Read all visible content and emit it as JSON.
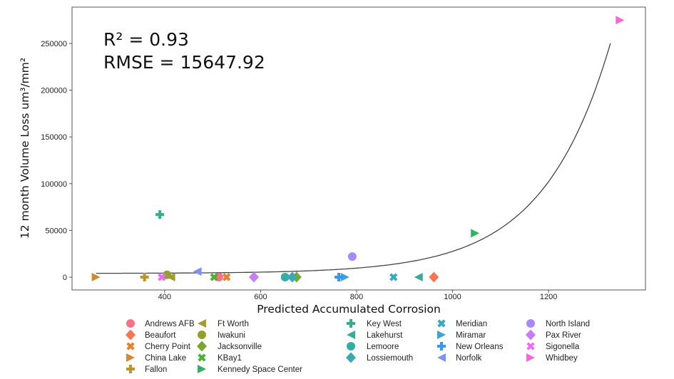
{
  "chart_data": {
    "type": "scatter",
    "title": "",
    "xlabel": "Predicted Accumulated Corrosion",
    "ylabel": "12 month Volume Loss um³/mm²",
    "xlim": [
      207,
      1402
    ],
    "ylim": [
      -13700,
      288900
    ],
    "xticks": [
      400,
      600,
      800,
      1000,
      1200
    ],
    "yticks": [
      0,
      50000,
      100000,
      150000,
      200000,
      250000
    ],
    "grid": false,
    "legend_position": "bottom",
    "annotations": {
      "r2": "R² = 0.93",
      "rmse": "RMSE = 15647.92"
    },
    "fit_curve": {
      "type": "exponential",
      "x_range": [
        257,
        1330
      ],
      "description_values": {
        "offset": 4000,
        "scale": 248000,
        "rate": 0.00713,
        "x_ref": 1330
      }
    },
    "series": [
      {
        "name": "Andrews AFB",
        "marker": "circle",
        "color": "#f77189",
        "x": 513,
        "y": 0
      },
      {
        "name": "Beaufort",
        "marker": "diamond",
        "color": "#f7754f",
        "x": 961,
        "y": 0
      },
      {
        "name": "Cherry Point",
        "marker": "x",
        "color": "#e7802f",
        "x": 529,
        "y": 0
      },
      {
        "name": "China Lake",
        "marker": "tri-right",
        "color": "#d08b31",
        "x": 257,
        "y": 0
      },
      {
        "name": "Fallon",
        "marker": "plus",
        "color": "#bb9331",
        "x": 358,
        "y": 0
      },
      {
        "name": "Ft Worth",
        "marker": "tri-left",
        "color": "#a79a31",
        "x": 413,
        "y": 0
      },
      {
        "name": "Iwakuni",
        "marker": "circle",
        "color": "#93a031",
        "x": 405,
        "y": 2500
      },
      {
        "name": "Jacksonville",
        "marker": "diamond",
        "color": "#77a731",
        "x": 675,
        "y": 0
      },
      {
        "name": "KBay1",
        "marker": "x",
        "color": "#4fb031",
        "x": 503,
        "y": 0
      },
      {
        "name": "Kennedy Space Center",
        "marker": "tri-right",
        "color": "#32b166",
        "x": 1047,
        "y": 47000
      },
      {
        "name": "Key West",
        "marker": "plus",
        "color": "#34af88",
        "x": 390,
        "y": 67000
      },
      {
        "name": "Lakehurst",
        "marker": "tri-left",
        "color": "#35ad9a",
        "x": 929,
        "y": 0
      },
      {
        "name": "Lemoore",
        "marker": "circle",
        "color": "#36aca7",
        "x": 651,
        "y": 0
      },
      {
        "name": "Lossiemouth",
        "marker": "diamond",
        "color": "#37aab5",
        "x": 666,
        "y": 0
      },
      {
        "name": "Meridian",
        "marker": "x",
        "color": "#38a8c3",
        "x": 877,
        "y": 0
      },
      {
        "name": "Miramar",
        "marker": "tri-right",
        "color": "#3ba3d6",
        "x": 776,
        "y": 0
      },
      {
        "name": "New Orleans",
        "marker": "plus",
        "color": "#3a95f0",
        "x": 763,
        "y": 0
      },
      {
        "name": "Norfolk",
        "marker": "tri-left",
        "color": "#7a93f4",
        "x": 468,
        "y": 6000
      },
      {
        "name": "North Island",
        "marker": "circle",
        "color": "#a78bf4",
        "x": 791,
        "y": 22000
      },
      {
        "name": "Pax River",
        "marker": "diamond",
        "color": "#c77ef4",
        "x": 586,
        "y": 0
      },
      {
        "name": "Sigonella",
        "marker": "x",
        "color": "#e96ef4",
        "x": 394,
        "y": 0
      },
      {
        "name": "Whidbey",
        "marker": "tri-right",
        "color": "#f568d3",
        "x": 1349,
        "y": 275000
      }
    ]
  }
}
